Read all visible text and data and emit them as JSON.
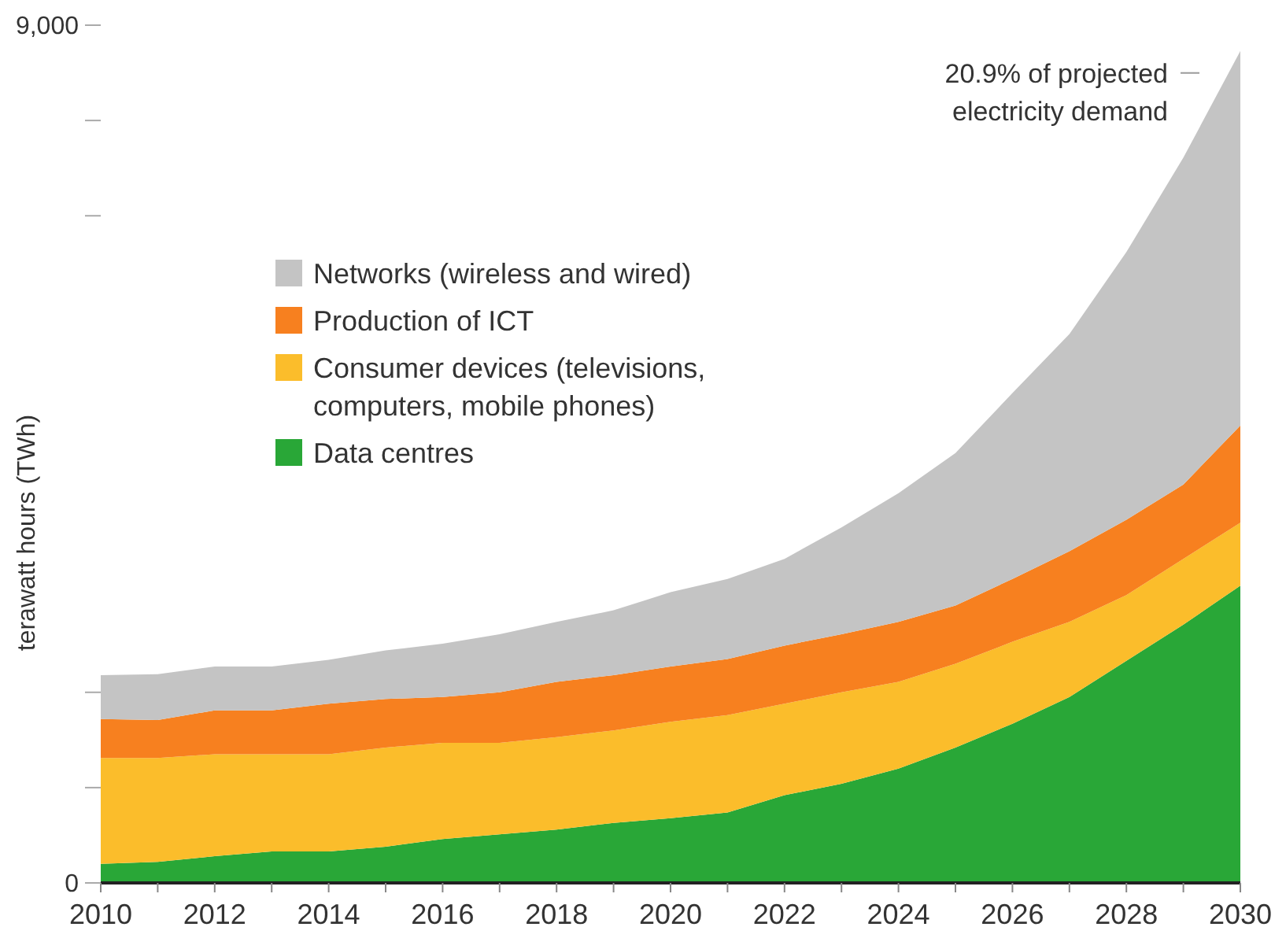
{
  "chart_data": {
    "type": "area",
    "stacked": true,
    "ylabel": "terawatt hours (TWh)",
    "x": [
      2010,
      2011,
      2012,
      2013,
      2014,
      2015,
      2016,
      2017,
      2018,
      2019,
      2020,
      2021,
      2022,
      2023,
      2024,
      2025,
      2026,
      2027,
      2028,
      2029,
      2030
    ],
    "xlim": [
      2010,
      2030
    ],
    "xticks": [
      2010,
      {
        "value": 2011,
        "label": null
      },
      2012,
      {
        "value": 2013,
        "label": null
      },
      2014,
      {
        "value": 2015,
        "label": null
      },
      2016,
      {
        "value": 2017,
        "label": null
      },
      2018,
      {
        "value": 2019,
        "label": null
      },
      2020,
      {
        "value": 2021,
        "label": null
      },
      2022,
      {
        "value": 2023,
        "label": null
      },
      2024,
      {
        "value": 2025,
        "label": null
      },
      2026,
      {
        "value": 2027,
        "label": null
      },
      2028,
      {
        "value": 2029,
        "label": null
      },
      2030
    ],
    "ylim": [
      0,
      9000
    ],
    "yticks": [
      0,
      {
        "value": 1000,
        "label": null
      },
      {
        "value": 2000,
        "label": null
      },
      {
        "value": 7000,
        "label": null
      },
      {
        "value": 8000,
        "label": null
      },
      {
        "value": 9000,
        "label": "9,000"
      }
    ],
    "series": [
      {
        "name": "Data centres",
        "color": "#29a737",
        "values": [
          200,
          220,
          280,
          330,
          330,
          380,
          460,
          510,
          560,
          630,
          680,
          740,
          920,
          1040,
          1200,
          1420,
          1670,
          1950,
          2330,
          2710,
          3120
        ]
      },
      {
        "name": "Consumer devices (televisions, computers, mobile phones)",
        "color": "#fbbd2b",
        "values": [
          1110,
          1090,
          1070,
          1020,
          1020,
          1040,
          1010,
          960,
          970,
          970,
          1010,
          1020,
          960,
          960,
          910,
          880,
          860,
          790,
          690,
          690,
          660
        ]
      },
      {
        "name": "Production of ICT",
        "color": "#f7801f",
        "values": [
          410,
          400,
          460,
          460,
          530,
          510,
          480,
          530,
          580,
          580,
          580,
          590,
          610,
          610,
          630,
          610,
          660,
          740,
          790,
          780,
          1020
        ]
      },
      {
        "name": "Networks (wireless and wired)",
        "color": "#c4c4c4",
        "values": [
          460,
          480,
          460,
          460,
          460,
          510,
          560,
          610,
          630,
          680,
          780,
          840,
          910,
          1120,
          1350,
          1600,
          1950,
          2280,
          2810,
          3430,
          3930
        ]
      }
    ],
    "legend": "top left",
    "annotations": [
      {
        "text": "20.9% of projected\nelectricity demand",
        "x": 2030,
        "y": 8730
      }
    ]
  }
}
